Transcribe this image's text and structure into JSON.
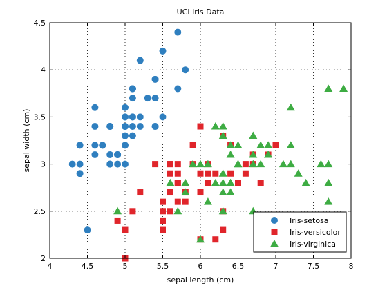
{
  "chart_data": {
    "type": "scatter",
    "title": "UCI Iris Data",
    "xlabel": "sepal length (cm)",
    "ylabel": "sepal width (cm)",
    "xlim": [
      4,
      8
    ],
    "ylim": [
      2,
      4.5
    ],
    "xticks": [
      4,
      4.5,
      5,
      5.5,
      6,
      6.5,
      7,
      7.5,
      8
    ],
    "xtick_labels": [
      "4",
      "4.5",
      "5",
      "5.5",
      "6",
      "6.5",
      "7",
      "7.5",
      "8"
    ],
    "yticks": [
      2,
      2.5,
      3,
      3.5,
      4,
      4.5
    ],
    "ytick_labels": [
      "2",
      "2.5",
      "3",
      "3.5",
      "4",
      "4.5"
    ],
    "grid": true,
    "legend": "bottom-right",
    "series": [
      {
        "name": "Iris-setosa",
        "marker": "circle",
        "color": "#2f7fbf",
        "points": [
          [
            5.1,
            3.5
          ],
          [
            4.9,
            3.0
          ],
          [
            4.7,
            3.2
          ],
          [
            4.6,
            3.1
          ],
          [
            5.0,
            3.6
          ],
          [
            5.4,
            3.9
          ],
          [
            4.6,
            3.4
          ],
          [
            5.0,
            3.4
          ],
          [
            4.4,
            2.9
          ],
          [
            4.9,
            3.1
          ],
          [
            5.4,
            3.7
          ],
          [
            4.8,
            3.4
          ],
          [
            4.8,
            3.0
          ],
          [
            4.3,
            3.0
          ],
          [
            5.8,
            4.0
          ],
          [
            5.7,
            4.4
          ],
          [
            5.4,
            3.9
          ],
          [
            5.1,
            3.5
          ],
          [
            5.7,
            3.8
          ],
          [
            5.1,
            3.8
          ],
          [
            5.4,
            3.4
          ],
          [
            5.1,
            3.7
          ],
          [
            4.6,
            3.6
          ],
          [
            5.1,
            3.3
          ],
          [
            4.8,
            3.4
          ],
          [
            5.0,
            3.0
          ],
          [
            5.0,
            3.4
          ],
          [
            5.2,
            3.5
          ],
          [
            5.2,
            3.4
          ],
          [
            4.7,
            3.2
          ],
          [
            4.8,
            3.1
          ],
          [
            5.4,
            3.4
          ],
          [
            5.2,
            4.1
          ],
          [
            5.5,
            4.2
          ],
          [
            4.9,
            3.1
          ],
          [
            5.0,
            3.2
          ],
          [
            5.5,
            3.5
          ],
          [
            4.9,
            3.1
          ],
          [
            4.4,
            3.0
          ],
          [
            5.1,
            3.4
          ],
          [
            5.0,
            3.5
          ],
          [
            4.5,
            2.3
          ],
          [
            4.4,
            3.2
          ],
          [
            5.0,
            3.5
          ],
          [
            5.1,
            3.8
          ],
          [
            4.8,
            3.0
          ],
          [
            5.1,
            3.8
          ],
          [
            4.6,
            3.2
          ],
          [
            5.3,
            3.7
          ],
          [
            5.0,
            3.3
          ]
        ]
      },
      {
        "name": "Iris-versicolor",
        "marker": "square",
        "color": "#e0252b",
        "points": [
          [
            7.0,
            3.2
          ],
          [
            6.4,
            3.2
          ],
          [
            6.9,
            3.1
          ],
          [
            5.5,
            2.3
          ],
          [
            6.5,
            2.8
          ],
          [
            5.7,
            2.8
          ],
          [
            6.3,
            3.3
          ],
          [
            4.9,
            2.4
          ],
          [
            6.6,
            2.9
          ],
          [
            5.2,
            2.7
          ],
          [
            5.0,
            2.0
          ],
          [
            5.9,
            3.0
          ],
          [
            6.0,
            2.2
          ],
          [
            6.1,
            2.9
          ],
          [
            5.6,
            2.9
          ],
          [
            6.7,
            3.1
          ],
          [
            5.6,
            3.0
          ],
          [
            5.8,
            2.7
          ],
          [
            6.2,
            2.2
          ],
          [
            5.6,
            2.5
          ],
          [
            5.9,
            3.2
          ],
          [
            6.1,
            2.8
          ],
          [
            6.3,
            2.5
          ],
          [
            6.1,
            2.8
          ],
          [
            6.4,
            2.9
          ],
          [
            6.6,
            3.0
          ],
          [
            6.8,
            2.8
          ],
          [
            6.7,
            3.0
          ],
          [
            6.0,
            2.9
          ],
          [
            5.7,
            2.6
          ],
          [
            5.5,
            2.4
          ],
          [
            5.5,
            2.4
          ],
          [
            5.8,
            2.7
          ],
          [
            6.0,
            2.7
          ],
          [
            5.4,
            3.0
          ],
          [
            6.0,
            3.4
          ],
          [
            6.7,
            3.1
          ],
          [
            6.3,
            2.3
          ],
          [
            5.6,
            3.0
          ],
          [
            5.5,
            2.5
          ],
          [
            5.5,
            2.6
          ],
          [
            6.1,
            3.0
          ],
          [
            5.8,
            2.6
          ],
          [
            5.0,
            2.3
          ],
          [
            5.6,
            2.7
          ],
          [
            5.7,
            3.0
          ],
          [
            5.7,
            2.9
          ],
          [
            6.2,
            2.9
          ],
          [
            5.1,
            2.5
          ],
          [
            5.7,
            2.8
          ]
        ]
      },
      {
        "name": "Iris-virginica",
        "marker": "triangle",
        "color": "#3eac43",
        "points": [
          [
            6.3,
            3.3
          ],
          [
            5.8,
            2.7
          ],
          [
            7.1,
            3.0
          ],
          [
            6.3,
            2.9
          ],
          [
            6.5,
            3.0
          ],
          [
            7.6,
            3.0
          ],
          [
            4.9,
            2.5
          ],
          [
            7.3,
            2.9
          ],
          [
            6.7,
            2.5
          ],
          [
            7.2,
            3.6
          ],
          [
            6.5,
            3.2
          ],
          [
            6.4,
            2.7
          ],
          [
            6.8,
            3.0
          ],
          [
            5.7,
            2.5
          ],
          [
            5.8,
            2.8
          ],
          [
            6.4,
            3.2
          ],
          [
            6.5,
            3.0
          ],
          [
            7.7,
            3.8
          ],
          [
            7.7,
            2.6
          ],
          [
            6.0,
            2.2
          ],
          [
            6.9,
            3.2
          ],
          [
            5.6,
            2.8
          ],
          [
            7.7,
            2.8
          ],
          [
            6.3,
            2.7
          ],
          [
            6.7,
            3.3
          ],
          [
            7.2,
            3.2
          ],
          [
            6.2,
            2.8
          ],
          [
            6.1,
            3.0
          ],
          [
            6.4,
            2.8
          ],
          [
            7.2,
            3.0
          ],
          [
            7.4,
            2.8
          ],
          [
            7.9,
            3.8
          ],
          [
            6.4,
            2.8
          ],
          [
            6.3,
            2.8
          ],
          [
            6.1,
            2.6
          ],
          [
            7.7,
            3.0
          ],
          [
            6.3,
            3.4
          ],
          [
            6.4,
            3.1
          ],
          [
            6.0,
            3.0
          ],
          [
            6.9,
            3.1
          ],
          [
            6.7,
            3.1
          ],
          [
            6.9,
            3.1
          ],
          [
            5.8,
            2.7
          ],
          [
            6.8,
            3.2
          ],
          [
            6.7,
            3.3
          ],
          [
            6.7,
            3.0
          ],
          [
            6.3,
            2.5
          ],
          [
            6.5,
            3.0
          ],
          [
            6.2,
            3.4
          ],
          [
            5.9,
            3.0
          ]
        ]
      }
    ]
  }
}
